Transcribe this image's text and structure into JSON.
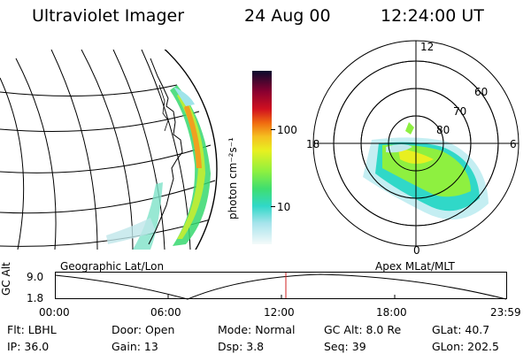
{
  "header": {
    "instrument": "Ultraviolet Imager",
    "date": "24 Aug 00",
    "time": "12:24:00 UT"
  },
  "left_panel": {
    "caption": "Geographic Lat/Lon"
  },
  "right_panel": {
    "caption": "Apex MLat/MLT",
    "mlt_labels": [
      "12",
      "18",
      "6",
      "0"
    ],
    "lat_labels": [
      "60",
      "70",
      "80"
    ]
  },
  "colorbar": {
    "label": "photon cm⁻²s⁻¹",
    "ticks": [
      "100",
      "10"
    ],
    "colors": [
      "#0b0b2e",
      "#8a0030",
      "#d01020",
      "#f06a10",
      "#f5c020",
      "#e8f020",
      "#8ef040",
      "#3fde70",
      "#30d8c8",
      "#a8e4ec",
      "#f4fafa"
    ]
  },
  "orbit_plot": {
    "y_label": "GC Alt",
    "y_ticks": [
      "9.0",
      "1.8"
    ],
    "x_ticks": [
      "00:00",
      "06:00",
      "12:00",
      "18:00",
      "23:59"
    ],
    "current_time_color": "#d02020"
  },
  "info": {
    "flt": "Flt: LBHL",
    "door": "Door: Open",
    "mode": "Mode: Normal",
    "gc_alt": "GC Alt: 8.0 Re",
    "glat": "GLat:  40.7",
    "ip": "IP: 36.0",
    "gain": "Gain: 13",
    "dsp": "Dsp:     3.8",
    "seq": "Seq: 39",
    "glon": "GLon: 202.5"
  }
}
